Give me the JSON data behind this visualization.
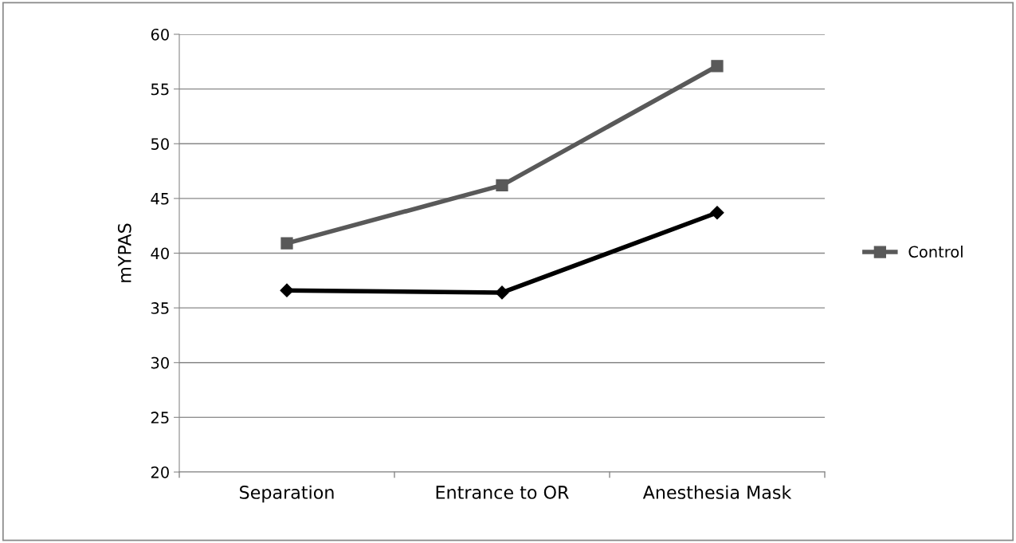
{
  "chart_data": {
    "type": "line",
    "ylabel": "mYPAS",
    "categories": [
      "Separation",
      "Entrance to OR",
      "Anesthesia Mask"
    ],
    "series": [
      {
        "color": "#000000",
        "marker": "diamond",
        "values": [
          36.6,
          36.4,
          43.7
        ]
      },
      {
        "name": "Control",
        "color": "#595959",
        "marker": "square",
        "values": [
          40.9,
          46.2,
          57.1
        ]
      }
    ],
    "ylim": [
      20,
      60
    ],
    "yticks": [
      20,
      25,
      30,
      35,
      40,
      45,
      50,
      55,
      60
    ],
    "grid": "y",
    "legend": "right",
    "line_style": "solid"
  }
}
